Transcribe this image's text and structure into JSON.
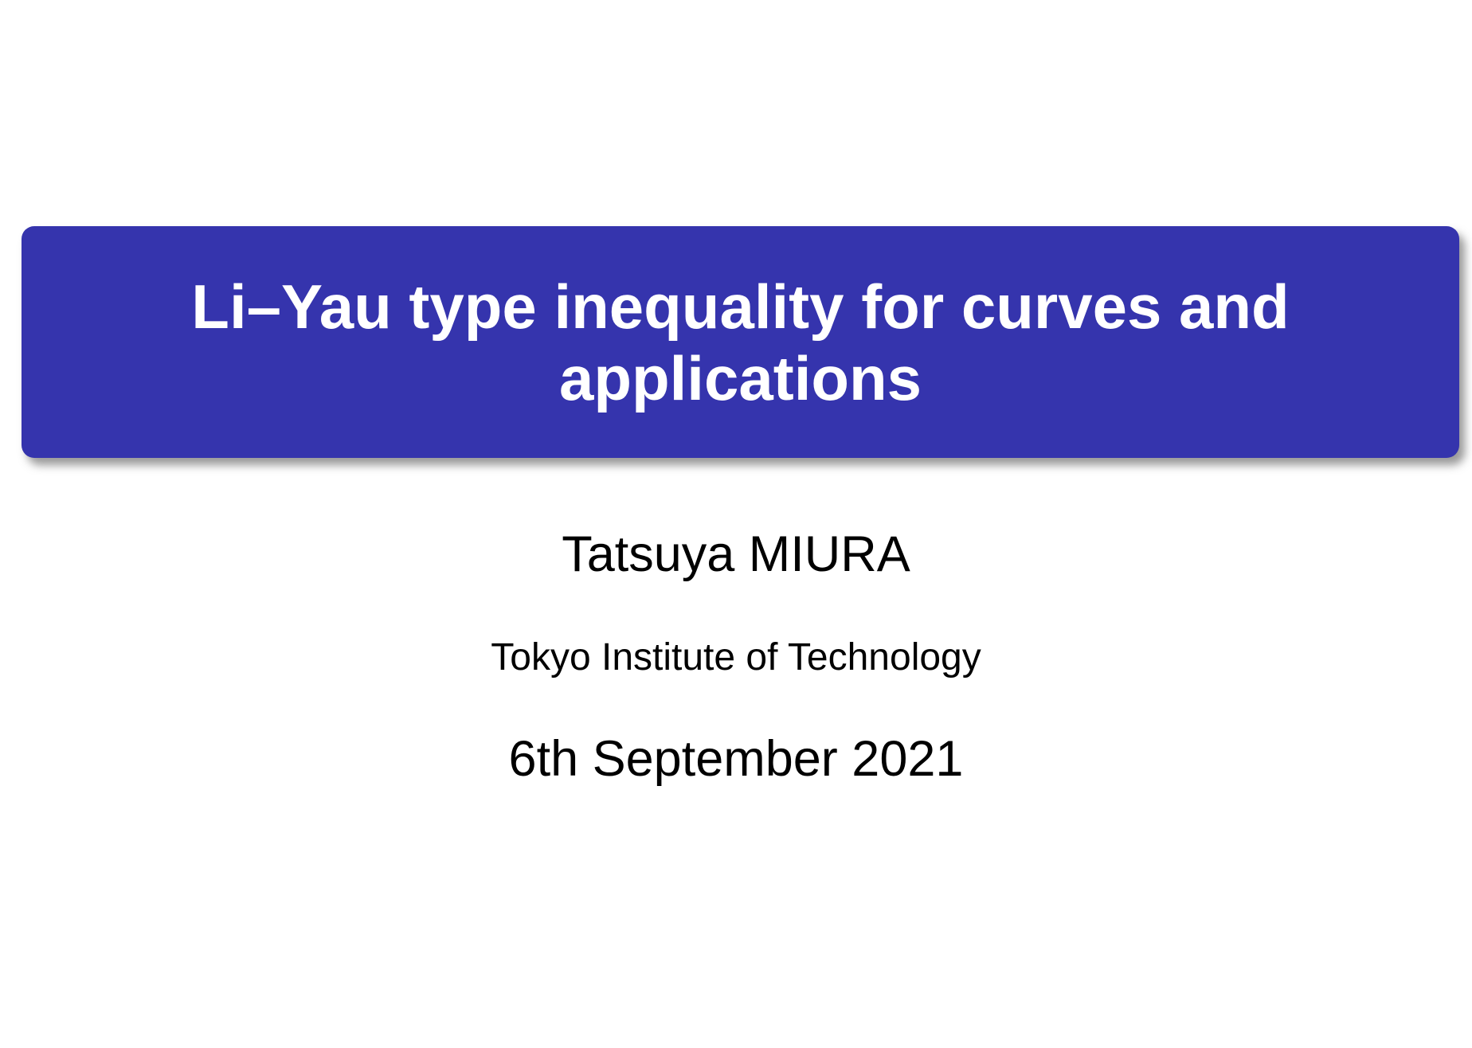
{
  "slide": {
    "title": "Li–Yau type inequality for curves and applications",
    "author": "Tatsuya MIURA",
    "institute": "Tokyo Institute of Technology",
    "date": "6th September 2021",
    "colors": {
      "title_box_background": "#3534ad",
      "title_text": "#ffffff",
      "body_text": "#000000",
      "slide_background": "#ffffff"
    }
  }
}
